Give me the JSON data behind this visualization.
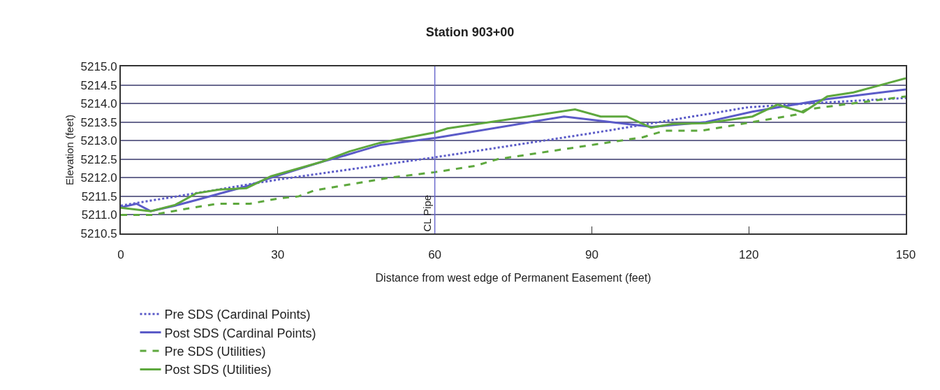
{
  "chart_data": {
    "type": "line",
    "title": "Station 903+00",
    "xlabel": "Distance from west edge of Permanent Easement (feet)",
    "ylabel": "Elevation (feet)",
    "xlim": [
      0,
      150
    ],
    "xticks": [
      0,
      30,
      60,
      90,
      120,
      150
    ],
    "ylim": [
      5210.5,
      5215
    ],
    "yticks": [
      {
        "value": 5210.5,
        "label": "5210.5"
      },
      {
        "value": 5211,
        "label": "5211.0"
      },
      {
        "value": 5211.5,
        "label": "5211.5"
      },
      {
        "value": 5212,
        "label": "5212.0"
      },
      {
        "value": 5212.5,
        "label": "5212.5"
      },
      {
        "value": 5213,
        "label": "5213.0"
      },
      {
        "value": 5213.5,
        "label": "5213.5"
      },
      {
        "value": 5214,
        "label": "5214.0"
      },
      {
        "value": 5214.5,
        "label": "5214.5"
      },
      {
        "value": 5215,
        "label": "5215.0"
      }
    ],
    "grid": "y",
    "legend": "bottom",
    "marker": "none",
    "ref_lines": [
      {
        "axis": "x",
        "value": 60,
        "label": "CL Pipe",
        "color": "#6a6acd",
        "line_style": "solid"
      }
    ],
    "series": [
      {
        "name": "Pre SDS (Cardinal Points)",
        "color": "#5b5bc8",
        "line_style": "dotted",
        "x": [
          0,
          30,
          60,
          90,
          105,
          120,
          131,
          150
        ],
        "values": [
          5211.25,
          5211.95,
          5212.55,
          5213.2,
          5213.55,
          5213.9,
          5214.0,
          5214.15
        ]
      },
      {
        "name": "Post SDS (Cardinal Points)",
        "color": "#5b5bc8",
        "line_style": "solid",
        "x": [
          0,
          3,
          5.7,
          10.4,
          14.4,
          24,
          28.7,
          38.4,
          42.8,
          49.5,
          60,
          84.7,
          96,
          101.5,
          111.8,
          120.7,
          135,
          150
        ],
        "values": [
          5211.2,
          5211.3,
          5211.1,
          5211.25,
          5211.4,
          5211.77,
          5212.0,
          5212.43,
          5212.6,
          5212.88,
          5213.07,
          5213.65,
          5213.46,
          5213.37,
          5213.5,
          5213.78,
          5214.12,
          5214.38
        ]
      },
      {
        "name": "Pre SDS (Utilities)",
        "color": "#5ea83e",
        "line_style": "dashed",
        "x": [
          0,
          6,
          14,
          18.5,
          24.7,
          30,
          34,
          37,
          51.3,
          60,
          67.7,
          72,
          99.7,
          104,
          111,
          127,
          129,
          131,
          150
        ],
        "values": [
          5211.0,
          5211.0,
          5211.2,
          5211.3,
          5211.3,
          5211.44,
          5211.5,
          5211.66,
          5212.0,
          5212.15,
          5212.32,
          5212.5,
          5213.09,
          5213.27,
          5213.27,
          5213.65,
          5213.7,
          5213.84,
          5214.19
        ]
      },
      {
        "name": "Post SDS (Utilities)",
        "color": "#5ea83e",
        "line_style": "solid",
        "x": [
          0,
          5.7,
          10.4,
          14.4,
          18.8,
          24,
          28.7,
          38.4,
          43.7,
          49.5,
          51.7,
          60,
          62.4,
          86.8,
          91.7,
          96.7,
          101.3,
          105.5,
          111.8,
          120.7,
          125.5,
          130.4,
          135,
          140,
          150
        ],
        "values": [
          5211.19,
          5211.1,
          5211.27,
          5211.58,
          5211.68,
          5211.72,
          5212.04,
          5212.43,
          5212.71,
          5212.94,
          5213.0,
          5213.22,
          5213.33,
          5213.84,
          5213.65,
          5213.65,
          5213.35,
          5213.45,
          5213.47,
          5213.65,
          5213.97,
          5213.76,
          5214.19,
          5214.3,
          5214.68
        ]
      }
    ]
  }
}
